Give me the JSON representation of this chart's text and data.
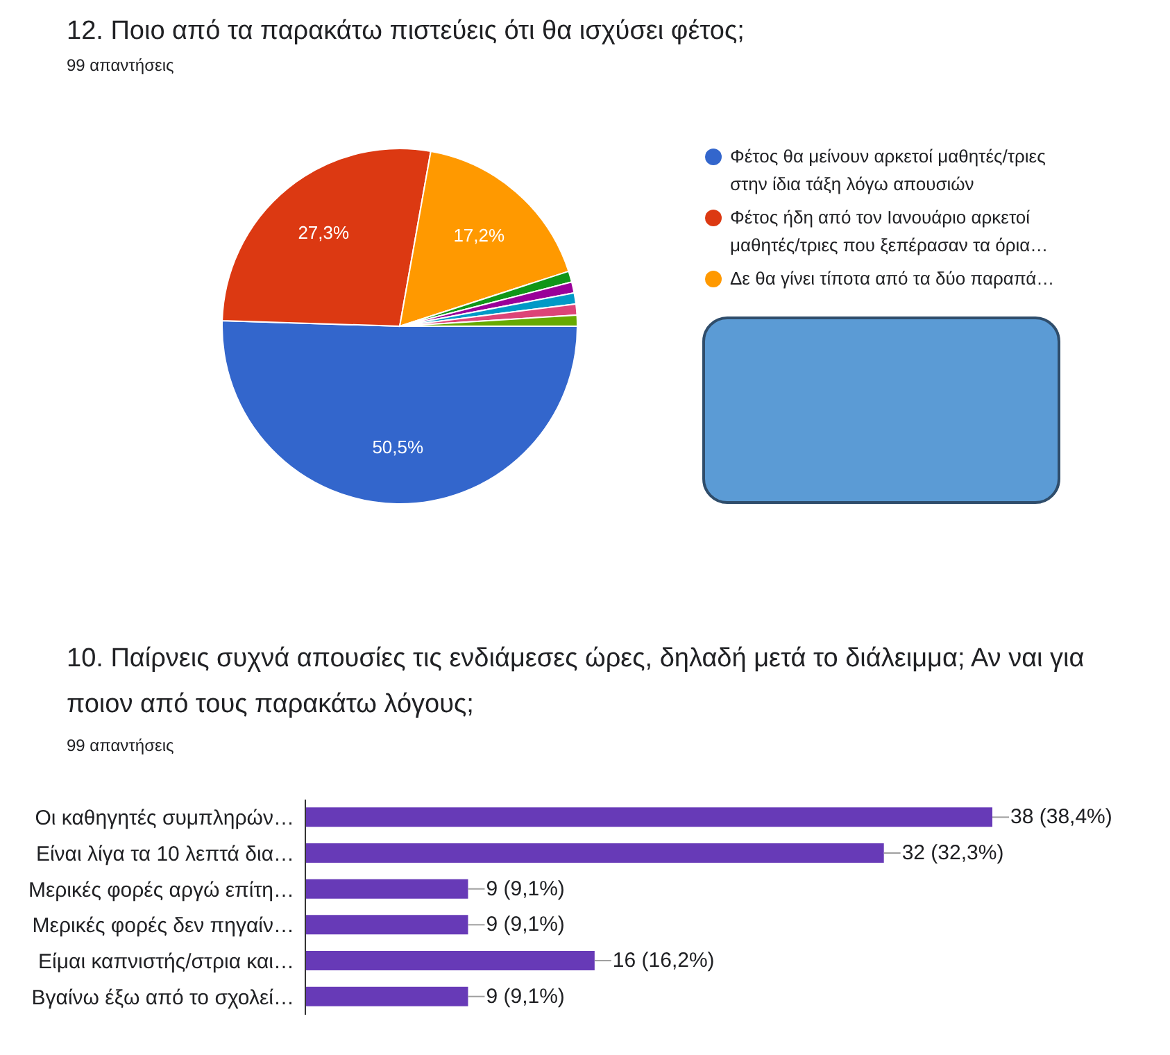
{
  "chart_data": [
    {
      "type": "pie",
      "title": "12. Ποιο από τα παρακάτω πιστεύεις ότι θα ισχύσει φέτος;",
      "subtitle": "99 απαντήσεις",
      "categories": [
        "Φέτος θα μείνουν αρκετοί μαθητές/τριες στην ίδια τάξη λόγω απουσιών",
        "Φέτος ήδη από τον Ιανουάριο αρκετοί μαθητές/τριες που ξεπέρασαν τα όρια…",
        "Δε θα γίνει τίποτα από τα δύο παραπά…",
        null,
        null,
        null,
        null,
        null
      ],
      "values": [
        50.5,
        27.3,
        17.2,
        1,
        1,
        1,
        1,
        1
      ],
      "colors": [
        "#3366cc",
        "#dc3912",
        "#ff9900",
        "#109618",
        "#990099",
        "#0099c6",
        "#dd4477",
        "#66aa00"
      ],
      "value_labels": [
        "50,5%",
        "27,3%",
        "17,2%",
        null,
        null,
        null,
        null,
        null
      ],
      "legend": "right"
    },
    {
      "type": "bar",
      "orientation": "horizontal",
      "title": "10. Παίρνεις συχνά απουσίες τις ενδιάμεσες ώρες, δηλαδή μετά το διάλειμμα; Αν ναι για ποιον από τους παρακάτω λόγους;",
      "subtitle": "99 απαντήσεις",
      "categories": [
        "Οι καθηγητές συμπληρών…",
        "Είναι λίγα τα 10 λεπτά δια…",
        "Μερικές φορές αργώ επίτη…",
        "Μερικές φορές δεν πηγαίν…",
        "Είμαι καπνιστής/στρια και…",
        "Βγαίνω έξω από το σχολεί…"
      ],
      "values": [
        38,
        32,
        9,
        9,
        16,
        9
      ],
      "color": "#673ab7",
      "value_labels": [
        "38 (38,4%)",
        "32 (32,3%)",
        "9 (9,1%)",
        "9 (9,1%)",
        "16 (16,2%)",
        "9 (9,1%)"
      ],
      "tick_labels": "y"
    }
  ]
}
